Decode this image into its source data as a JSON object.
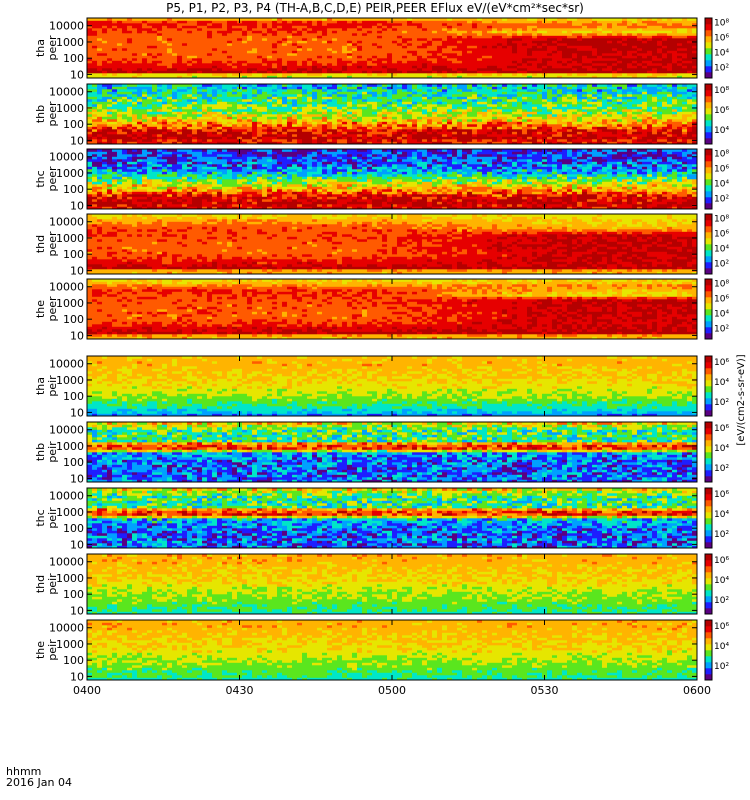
{
  "title": "P5, P1, P2, P3, P4 (TH-A,B,C,D,E) PEIR,PEER EFlux eV/(eV*cm²*sec*sr)",
  "footer": {
    "line1": "hhmm",
    "line2": "2016 Jan 04"
  },
  "colorbar_unit_label": "[eV/(cm2-s-sr-eV)]",
  "colormap": [
    "#5a0082",
    "#1e1eff",
    "#00a0ff",
    "#00e6c8",
    "#5ae61e",
    "#e6e600",
    "#ffb400",
    "#ff5a00",
    "#e60000",
    "#b40000"
  ],
  "chart_data": {
    "type": "heatmap",
    "x_ticks": [
      "0400",
      "0430",
      "0500",
      "0530",
      "0600"
    ],
    "xlim": [
      "04:00",
      "06:00"
    ],
    "y_ticks": [
      "10",
      "100",
      "1000",
      "10000"
    ],
    "ylim": [
      6,
      30000
    ],
    "yscale": "log",
    "panels": [
      {
        "label": "tha peer",
        "cbar_ticks": [
          "10²",
          "10⁴",
          "10⁶",
          "10⁸"
        ],
        "profile": [
          [
            1,
            5
          ],
          [
            1.1,
            9
          ],
          [
            1.5,
            8
          ],
          [
            2,
            7
          ],
          [
            2.7,
            7
          ],
          [
            3.3,
            7
          ],
          [
            3.8,
            7.5
          ],
          [
            4.2,
            8
          ],
          [
            4.5,
            5
          ]
        ],
        "late_profile": [
          [
            1,
            5
          ],
          [
            1.1,
            9
          ],
          [
            1.5,
            8.5
          ],
          [
            2.2,
            8.5
          ],
          [
            2.8,
            8.7
          ],
          [
            3.2,
            8.8
          ],
          [
            3.6,
            5
          ],
          [
            4,
            7
          ],
          [
            4.5,
            5
          ]
        ]
      },
      {
        "label": "thb peer",
        "cbar_ticks": [
          "10⁴",
          "10⁶",
          "10⁸"
        ],
        "profile": [
          [
            1,
            8
          ],
          [
            1.2,
            9
          ],
          [
            1.6,
            8
          ],
          [
            2,
            6.5
          ],
          [
            2.5,
            5
          ],
          [
            3,
            4
          ],
          [
            3.5,
            3.5
          ],
          [
            4,
            3
          ],
          [
            4.5,
            2.5
          ]
        ]
      },
      {
        "label": "thc peer",
        "cbar_ticks": [
          "10²",
          "10⁴",
          "10⁶",
          "10⁸"
        ],
        "profile": [
          [
            1,
            8.5
          ],
          [
            1.2,
            9
          ],
          [
            1.6,
            8
          ],
          [
            2,
            6
          ],
          [
            2.5,
            4.5
          ],
          [
            3,
            2.5
          ],
          [
            3.5,
            1.5
          ],
          [
            4,
            1
          ],
          [
            4.5,
            1
          ]
        ]
      },
      {
        "label": "thd peer",
        "cbar_ticks": [
          "10²",
          "10⁴",
          "10⁶",
          "10⁸"
        ],
        "profile": [
          [
            1,
            6
          ],
          [
            1.1,
            9
          ],
          [
            1.5,
            8
          ],
          [
            2,
            7
          ],
          [
            2.6,
            7
          ],
          [
            3.2,
            7.3
          ],
          [
            3.8,
            7
          ],
          [
            4.5,
            5
          ]
        ],
        "late_profile": [
          [
            1,
            6
          ],
          [
            1.1,
            9
          ],
          [
            1.5,
            8.5
          ],
          [
            2,
            8.5
          ],
          [
            2.6,
            8.7
          ],
          [
            3.2,
            8.7
          ],
          [
            3.6,
            6
          ],
          [
            4.5,
            5
          ]
        ]
      },
      {
        "label": "the peer",
        "cbar_ticks": [
          "10²",
          "10⁴",
          "10⁶",
          "10⁸"
        ],
        "profile": [
          [
            1,
            6
          ],
          [
            1.1,
            9
          ],
          [
            1.5,
            8
          ],
          [
            2,
            7
          ],
          [
            2.6,
            7
          ],
          [
            3.2,
            7.2
          ],
          [
            3.8,
            7.5
          ],
          [
            4.5,
            5
          ]
        ],
        "late_profile": [
          [
            1,
            6
          ],
          [
            1.1,
            9
          ],
          [
            1.5,
            8.5
          ],
          [
            2,
            8.5
          ],
          [
            2.6,
            8.7
          ],
          [
            3.2,
            8.8
          ],
          [
            3.5,
            5
          ],
          [
            4,
            6.5
          ],
          [
            4.5,
            5
          ]
        ]
      },
      {
        "label": "tha peir",
        "cbar_ticks": [
          "10²",
          "10⁴",
          "10⁶"
        ],
        "profile": [
          [
            0.8,
            1.5
          ],
          [
            1,
            2.5
          ],
          [
            1.5,
            3.5
          ],
          [
            2,
            4.5
          ],
          [
            2.5,
            5
          ],
          [
            3,
            5.5
          ],
          [
            3.5,
            5.7
          ],
          [
            4,
            6
          ],
          [
            4.5,
            5.8
          ]
        ]
      },
      {
        "label": "thb peir",
        "cbar_ticks": [
          "10²",
          "10⁴",
          "10⁶"
        ],
        "profile": [
          [
            0.8,
            1.5
          ],
          [
            1,
            1.5
          ],
          [
            1.5,
            1.5
          ],
          [
            2,
            1.5
          ],
          [
            2.6,
            2
          ],
          [
            2.8,
            7.5
          ],
          [
            3,
            7.5
          ],
          [
            3.2,
            6
          ],
          [
            3.3,
            3.5
          ],
          [
            4,
            3.5
          ],
          [
            4.4,
            5.5
          ],
          [
            4.5,
            5.5
          ]
        ]
      },
      {
        "label": "thc peir",
        "cbar_ticks": [
          "10²",
          "10⁴",
          "10⁶"
        ],
        "profile": [
          [
            0.8,
            1.5
          ],
          [
            1,
            1.5
          ],
          [
            1.5,
            1.5
          ],
          [
            2,
            1.5
          ],
          [
            2.6,
            2.5
          ],
          [
            2.8,
            7.5
          ],
          [
            3,
            7.5
          ],
          [
            3.2,
            6
          ],
          [
            3.3,
            3.5
          ],
          [
            4,
            3.5
          ],
          [
            4.4,
            5.5
          ],
          [
            4.5,
            5.5
          ]
        ]
      },
      {
        "label": "thd peir",
        "cbar_ticks": [
          "10²",
          "10⁴",
          "10⁶"
        ],
        "profile": [
          [
            0.8,
            3
          ],
          [
            1,
            3.5
          ],
          [
            1.5,
            4
          ],
          [
            2,
            4.5
          ],
          [
            2.5,
            5
          ],
          [
            3,
            5.5
          ],
          [
            3.5,
            5.7
          ],
          [
            4,
            6
          ],
          [
            4.5,
            6
          ]
        ]
      },
      {
        "label": "the peir",
        "cbar_ticks": [
          "10²",
          "10⁴",
          "10⁶"
        ],
        "profile": [
          [
            0.8,
            3
          ],
          [
            1,
            3.5
          ],
          [
            1.5,
            4
          ],
          [
            2,
            4.5
          ],
          [
            2.5,
            5
          ],
          [
            3,
            5.5
          ],
          [
            3.5,
            5.7
          ],
          [
            4,
            6
          ],
          [
            4.5,
            6
          ]
        ]
      }
    ]
  }
}
